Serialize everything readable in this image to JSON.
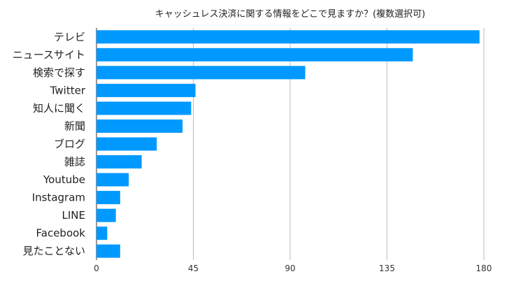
{
  "chart_data": {
    "type": "bar",
    "orientation": "horizontal",
    "title": "キャッシュレス決済に関する情報をどこで見ますか？(複数選択可)",
    "categories": [
      "テレビ",
      "ニュースサイト",
      "検索で探す",
      "Twitter",
      "知人に聞く",
      "新聞",
      "ブログ",
      "雑誌",
      "Youtube",
      "Instagram",
      "LINE",
      "Facebook",
      "見たことない"
    ],
    "values": [
      178,
      147,
      97,
      46,
      44,
      40,
      28,
      21,
      15,
      11,
      9,
      5,
      11
    ],
    "xlim": [
      0,
      180
    ],
    "xticks": [
      0,
      45,
      90,
      135,
      180
    ],
    "bar_color": "#0099ff",
    "grid": true
  }
}
